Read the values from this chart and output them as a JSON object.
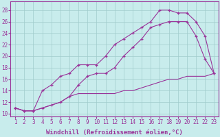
{
  "x": [
    1,
    2,
    3,
    4,
    5,
    6,
    7,
    8,
    9,
    10,
    11,
    12,
    13,
    14,
    15,
    16,
    17,
    18,
    19,
    20,
    21,
    22,
    23
  ],
  "line1": [
    11,
    10.5,
    10.5,
    11,
    11.5,
    12,
    13,
    15,
    16.5,
    17,
    17,
    18,
    20,
    21.5,
    23,
    25,
    25.5,
    26,
    26,
    26,
    23.5,
    19.5,
    17
  ],
  "line2": [
    11,
    10.5,
    10.5,
    14,
    15,
    16.5,
    17,
    18.5,
    18.5,
    18.5,
    20,
    22,
    23,
    24,
    25,
    26,
    28,
    28,
    27.5,
    27.5,
    26,
    23.5,
    17
  ],
  "line3": [
    11,
    10.5,
    10.5,
    11,
    11.5,
    12,
    13,
    13.5,
    13.5,
    13.5,
    13.5,
    13.5,
    14,
    14,
    14.5,
    15,
    15.5,
    16,
    16,
    16.5,
    16.5,
    16.5,
    17
  ],
  "color": "#993399",
  "bg_color": "#c8ecec",
  "grid_color": "#a0cccc",
  "xlabel": "Windchill (Refroidissement éolien,°C)",
  "xlabel_fontsize": 6.5,
  "yticks": [
    10,
    12,
    14,
    16,
    18,
    20,
    22,
    24,
    26,
    28
  ],
  "xticks": [
    1,
    2,
    3,
    4,
    5,
    6,
    7,
    8,
    9,
    10,
    11,
    12,
    13,
    14,
    15,
    16,
    17,
    18,
    19,
    20,
    21,
    22,
    23
  ],
  "ylim": [
    9.5,
    29.5
  ],
  "xlim": [
    0.5,
    23.5
  ],
  "tick_fontsize": 5.5,
  "marker": "+"
}
